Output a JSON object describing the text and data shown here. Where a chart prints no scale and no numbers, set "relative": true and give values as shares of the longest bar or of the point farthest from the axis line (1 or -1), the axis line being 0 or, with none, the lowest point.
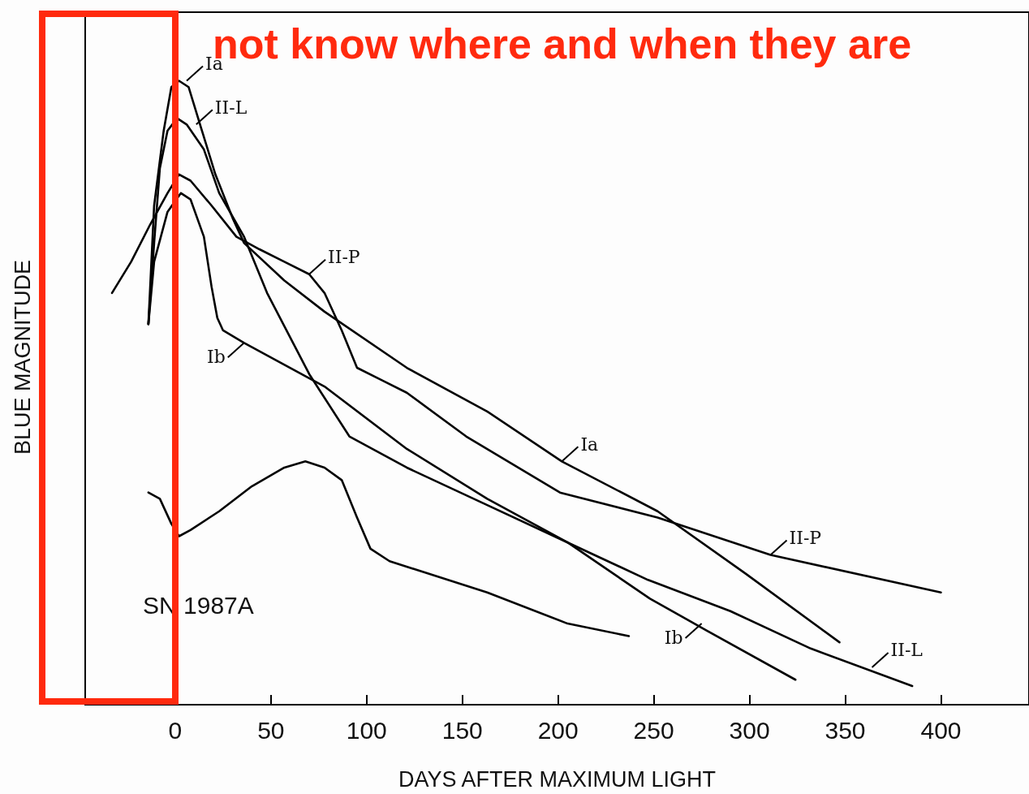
{
  "chart_data": {
    "type": "line",
    "relative": true,
    "xlabel": "DAYS AFTER MAXIMUM LIGHT",
    "ylabel": "BLUE MAGNITUDE",
    "xlim": [
      -47,
      446
    ],
    "xticks": [
      0,
      50,
      100,
      150,
      200,
      250,
      300,
      350,
      400
    ],
    "series": [
      {
        "color": "#000000",
        "x": [
          -14,
          -11,
          -6,
          -2,
          2,
          7,
          14,
          21,
          30,
          36,
          57,
          78,
          121,
          163,
          202,
          252,
          298,
          347
        ],
        "values": [
          0.61,
          0.8,
          0.92,
          0.99,
          1.0,
          0.99,
          0.92,
          0.85,
          0.78,
          0.74,
          0.68,
          0.63,
          0.54,
          0.47,
          0.39,
          0.31,
          0.21,
          0.1
        ]
      },
      {
        "color": "#000000",
        "x": [
          -14,
          -11,
          -8,
          -4,
          1,
          6,
          15,
          23,
          36,
          48,
          70,
          91,
          121,
          163,
          205,
          247,
          290,
          332,
          385
        ],
        "values": [
          0.61,
          0.74,
          0.86,
          0.92,
          0.94,
          0.93,
          0.89,
          0.82,
          0.75,
          0.66,
          0.53,
          0.43,
          0.38,
          0.32,
          0.26,
          0.2,
          0.15,
          0.09,
          0.03
        ]
      },
      {
        "color": "#000000",
        "x": [
          -33,
          -23,
          -13,
          -4,
          2,
          8,
          19,
          32,
          44,
          57,
          70,
          78,
          87,
          95,
          108,
          121,
          152,
          201,
          252,
          311,
          400
        ],
        "values": [
          0.66,
          0.71,
          0.77,
          0.82,
          0.85,
          0.84,
          0.8,
          0.75,
          0.73,
          0.71,
          0.69,
          0.66,
          0.6,
          0.54,
          0.52,
          0.5,
          0.43,
          0.34,
          0.3,
          0.24,
          0.18
        ]
      },
      {
        "color": "#000000",
        "x": [
          -14,
          -11,
          -4,
          3,
          8,
          15,
          19,
          22,
          25,
          36,
          78,
          121,
          163,
          205,
          248,
          277,
          324
        ],
        "values": [
          0.61,
          0.71,
          0.79,
          0.82,
          0.81,
          0.75,
          0.67,
          0.62,
          0.6,
          0.58,
          0.51,
          0.41,
          0.33,
          0.26,
          0.17,
          0.12,
          0.04
        ]
      },
      {
        "color": "#000000",
        "x": [
          -14,
          -8,
          -2,
          2,
          8,
          23,
          40,
          57,
          68,
          78,
          87,
          95,
          102,
          112,
          163,
          205,
          237
        ],
        "values": [
          0.34,
          0.33,
          0.29,
          0.27,
          0.28,
          0.31,
          0.35,
          0.38,
          0.39,
          0.38,
          0.36,
          0.3,
          0.25,
          0.23,
          0.18,
          0.13,
          0.11
        ]
      }
    ],
    "annotations": [
      "not know where and when they are",
      "SN 1987A",
      {
        "text": "Ia",
        "x": 6,
        "y": 1.0
      },
      {
        "text": "II-L",
        "x": 11,
        "y": 0.93
      },
      {
        "text": "II-P",
        "x": 70,
        "y": 0.69
      },
      {
        "text": "Ib",
        "x": 36,
        "y": 0.58
      },
      {
        "text": "Ia",
        "x": 202,
        "y": 0.39
      },
      {
        "text": "II-P",
        "x": 311,
        "y": 0.24
      },
      {
        "text": "Ib",
        "x": 275,
        "y": 0.13
      },
      {
        "text": "II-L",
        "x": 364,
        "y": 0.06
      }
    ]
  }
}
